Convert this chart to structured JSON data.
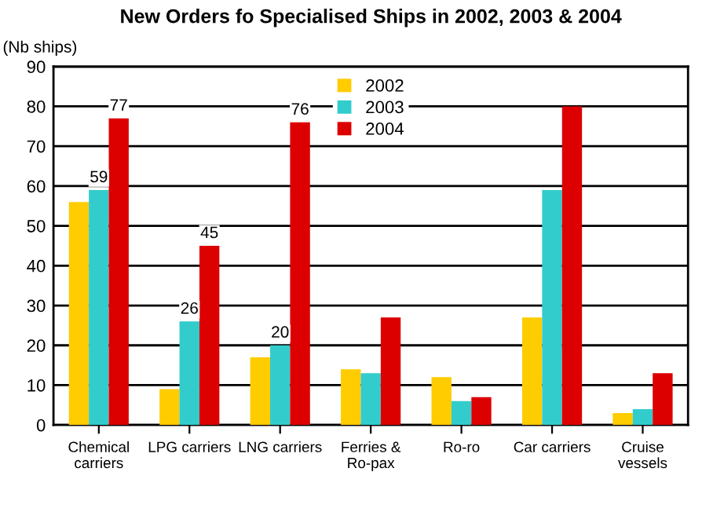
{
  "chart_data": {
    "type": "bar",
    "title": "New Orders fo Specialised Ships in 2002, 2003 & 2004",
    "ylabel": "(Nb ships)",
    "categories": [
      "Chemical\ncarriers",
      "LPG carriers",
      "LNG carriers",
      "Ferries &\nRo-pax",
      "Ro-ro",
      "Car carriers",
      "Cruise\nvessels"
    ],
    "series": [
      {
        "name": "2002",
        "color": "#ffcc00",
        "values": [
          56,
          9,
          17,
          14,
          12,
          27,
          3
        ]
      },
      {
        "name": "2003",
        "color": "#33cccc",
        "values": [
          59,
          26,
          20,
          13,
          6,
          59,
          4
        ],
        "value_labels": [
          "59",
          "26",
          "20",
          null,
          null,
          null,
          null
        ]
      },
      {
        "name": "2004",
        "color": "#dd0000",
        "values": [
          77,
          45,
          76,
          27,
          7,
          80,
          13
        ],
        "value_labels": [
          "77",
          "45",
          "76",
          null,
          null,
          null,
          null
        ]
      }
    ],
    "ylim": [
      0,
      90
    ],
    "yticks": [
      0,
      10,
      20,
      30,
      40,
      50,
      60,
      70,
      80,
      90
    ],
    "grid": "y",
    "legend": "top"
  }
}
